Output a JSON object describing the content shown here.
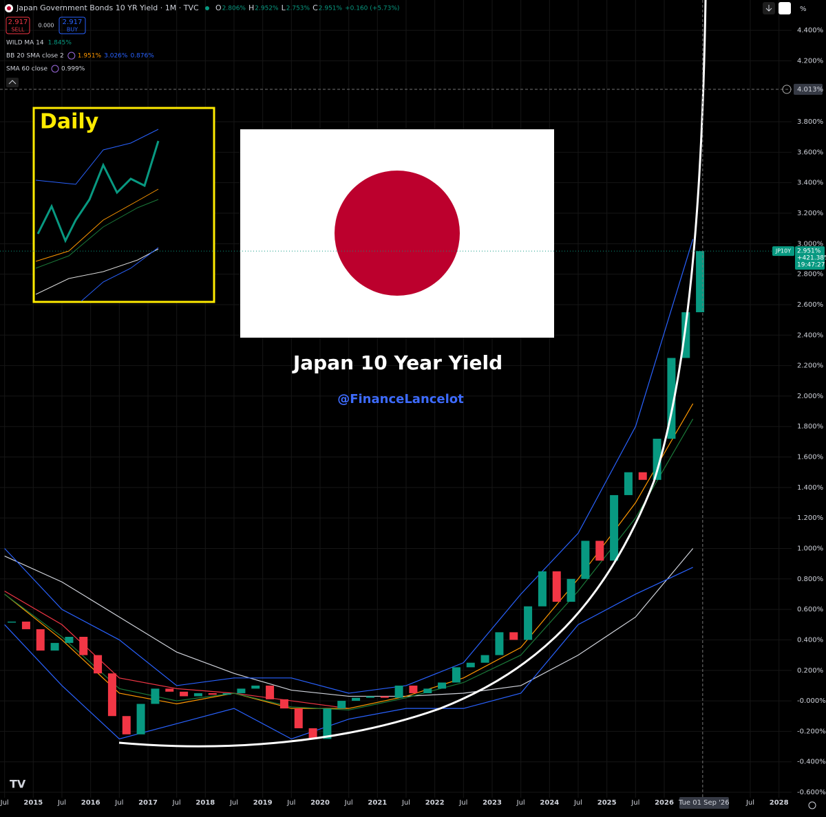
{
  "header": {
    "symbol_title": "Japan Government Bonds 10 YR Yield · 1M · TVC",
    "ohlc": [
      {
        "key": "O",
        "value": "2.806%"
      },
      {
        "key": "H",
        "value": "2.952%"
      },
      {
        "key": "L",
        "value": "2.753%"
      },
      {
        "key": "C",
        "value": "2.951%"
      }
    ],
    "change": "+0.160 (+5.73%)",
    "sell": {
      "price": "2.917",
      "label": "SELL"
    },
    "spread": "0.000",
    "buy": {
      "price": "2.917",
      "label": "BUY"
    },
    "indicators": [
      {
        "name": "WILD MA 14",
        "labels": [
          {
            "text": "1.845%",
            "color": "#089981"
          }
        ]
      },
      {
        "name": "BB 20 SMA close 2",
        "labels": [
          {
            "text": "1.951%",
            "color": "#ff9800"
          },
          {
            "text": "3.026%",
            "color": "#2962ff"
          },
          {
            "text": "0.876%",
            "color": "#2962ff"
          }
        ]
      },
      {
        "name": "SMA 60 close",
        "labels": [
          {
            "text": "0.999%",
            "color": "#d1d4dc"
          }
        ]
      }
    ],
    "percent_button": "%"
  },
  "overlay": {
    "inset_label": "Daily",
    "title": "Japan 10 Year Yield",
    "handle": "@FinanceLancelot"
  },
  "chart_data": {
    "type": "candlestick",
    "x": [
      2014.5,
      2014.75,
      2015,
      2015.25,
      2015.5,
      2015.75,
      2016,
      2016.25,
      2016.5,
      2016.75,
      2017,
      2017.25,
      2017.5,
      2017.75,
      2018,
      2018.25,
      2018.5,
      2018.75,
      2019,
      2019.25,
      2019.5,
      2019.75,
      2020,
      2020.25,
      2020.5,
      2020.75,
      2021,
      2021.25,
      2021.5,
      2021.75,
      2022,
      2022.25,
      2022.5,
      2022.75,
      2023,
      2023.25,
      2023.5,
      2023.75,
      2024,
      2024.25,
      2024.5,
      2024.75,
      2025,
      2025.25,
      2025.5,
      2025.75,
      2026,
      2026.25,
      2026.5
    ],
    "values": [
      0.52,
      0.47,
      0.33,
      0.38,
      0.42,
      0.3,
      0.18,
      -0.1,
      -0.22,
      -0.02,
      0.08,
      0.06,
      0.03,
      0.05,
      0.04,
      0.05,
      0.08,
      0.1,
      0.01,
      -0.05,
      -0.18,
      -0.25,
      -0.05,
      0.0,
      0.02,
      0.03,
      0.02,
      0.1,
      0.05,
      0.08,
      0.12,
      0.22,
      0.25,
      0.3,
      0.45,
      0.4,
      0.62,
      0.85,
      0.65,
      0.8,
      1.05,
      0.92,
      1.35,
      1.5,
      1.45,
      1.72,
      2.25,
      2.55,
      2.951
    ],
    "up_color": "#089981",
    "down_color": "#f23645",
    "series": [
      {
        "color": "#d1d4dc",
        "x": [
          2014.5,
          2015.5,
          2016.5,
          2017.5,
          2018.5,
          2019.5,
          2020.5,
          2021.5,
          2022.5,
          2023.5,
          2024.5,
          2025.5,
          2026.5
        ],
        "values": [
          0.95,
          0.78,
          0.55,
          0.32,
          0.18,
          0.07,
          0.03,
          0.03,
          0.05,
          0.1,
          0.3,
          0.55,
          1.0
        ]
      },
      {
        "color": "#f23645",
        "x": [
          2014.5,
          2015.5,
          2016.5,
          2017.5,
          2018.5,
          2019.5,
          2020.5,
          2021.5,
          2022.5,
          2023.5,
          2024.5,
          2025.5,
          2026.5
        ],
        "values": [
          0.72,
          0.5,
          0.15,
          0.08,
          0.05,
          0.0,
          -0.05,
          null,
          null,
          null,
          null,
          null,
          null
        ]
      },
      {
        "color": "#ff9800",
        "x": [
          2014.5,
          2015.5,
          2016.5,
          2017.5,
          2018.5,
          2019.5,
          2020.5,
          2021.5,
          2022.5,
          2023.5,
          2024.5,
          2025.5,
          2026.5
        ],
        "values": [
          0.7,
          0.4,
          0.05,
          -0.02,
          0.05,
          -0.05,
          -0.05,
          0.03,
          0.15,
          0.35,
          0.8,
          1.3,
          1.95
        ]
      },
      {
        "color": "#1b7a3a",
        "x": [
          2014.5,
          2015.5,
          2016.5,
          2017.5,
          2018.5,
          2019.5,
          2020.5,
          2021.5,
          2022.5,
          2023.5,
          2024.5,
          2025.5,
          2026.5
        ],
        "values": [
          0.7,
          0.42,
          0.08,
          0.0,
          0.05,
          -0.04,
          -0.06,
          0.02,
          0.12,
          0.3,
          0.72,
          1.2,
          1.85
        ]
      },
      {
        "color": "#2962ff",
        "x": [
          2014.5,
          2015.5,
          2016.5,
          2017.5,
          2018.5,
          2019.5,
          2020.5,
          2021.5,
          2022.5,
          2023.5,
          2024.5,
          2025.5,
          2026.5
        ],
        "values": [
          1.0,
          0.6,
          0.4,
          0.1,
          0.15,
          0.15,
          0.05,
          0.1,
          0.25,
          0.7,
          1.1,
          1.8,
          3.03
        ]
      },
      {
        "color": "#2962ff",
        "x": [
          2014.5,
          2015.5,
          2016.5,
          2017.5,
          2018.5,
          2019.5,
          2020.5,
          2021.5,
          2022.5,
          2023.5,
          2024.5,
          2025.5,
          2026.5
        ],
        "values": [
          0.5,
          0.1,
          -0.25,
          -0.15,
          -0.05,
          -0.25,
          -0.12,
          -0.05,
          -0.05,
          0.05,
          0.5,
          0.7,
          0.876
        ]
      }
    ],
    "xlim": [
      2014.42,
      2028.22
    ],
    "ylim": [
      -0.636,
      4.599
    ],
    "grid": true,
    "xticks": [
      {
        "value": 2014.5,
        "label": "Jul"
      },
      2015,
      {
        "value": 2015.5,
        "label": "Jul"
      },
      2016,
      {
        "value": 2016.5,
        "label": "Jul"
      },
      2017,
      {
        "value": 2017.5,
        "label": "Jul"
      },
      2018,
      {
        "value": 2018.5,
        "label": "Jul"
      },
      2019,
      {
        "value": 2019.5,
        "label": "Jul"
      },
      2020,
      {
        "value": 2020.5,
        "label": "Jul"
      },
      2021,
      {
        "value": 2021.5,
        "label": "Jul"
      },
      2022,
      {
        "value": 2022.5,
        "label": "Jul"
      },
      2023,
      {
        "value": 2023.5,
        "label": "Jul"
      },
      2024,
      {
        "value": 2024.5,
        "label": "Jul"
      },
      2025,
      {
        "value": 2025.5,
        "label": "Jul"
      },
      2026,
      {
        "value": 2027.5,
        "label": "Jul"
      },
      2028
    ],
    "yticks": [
      {
        "value": 4.4,
        "label": "4.400%"
      },
      {
        "value": 4.2,
        "label": "4.200%"
      },
      {
        "value": 3.8,
        "label": "3.800%"
      },
      {
        "value": 3.6,
        "label": "3.600%"
      },
      {
        "value": 3.4,
        "label": "3.400%"
      },
      {
        "value": 3.2,
        "label": "3.200%"
      },
      {
        "value": 3.0,
        "label": "3.000%"
      },
      {
        "value": 2.8,
        "label": "2.800%"
      },
      {
        "value": 2.6,
        "label": "2.600%"
      },
      {
        "value": 2.4,
        "label": "2.400%"
      },
      {
        "value": 2.2,
        "label": "2.200%"
      },
      {
        "value": 2.0,
        "label": "2.000%"
      },
      {
        "value": 1.8,
        "label": "1.800%"
      },
      {
        "value": 1.6,
        "label": "1.600%"
      },
      {
        "value": 1.4,
        "label": "1.400%"
      },
      {
        "value": 1.2,
        "label": "1.200%"
      },
      {
        "value": 1.0,
        "label": "1.000%"
      },
      {
        "value": 0.8,
        "label": "0.800%"
      },
      {
        "value": 0.6,
        "label": "0.600%"
      },
      {
        "value": 0.4,
        "label": "0.400%"
      },
      {
        "value": 0.2,
        "label": "0.200%"
      },
      {
        "value": 0,
        "label": "-0.000%"
      },
      {
        "value": -0.2,
        "label": "-0.200%"
      },
      {
        "value": -0.4,
        "label": "-0.400%"
      },
      {
        "value": -0.6,
        "label": "-0.600%"
      }
    ],
    "symbol_badge": "JP10Y",
    "last_price": {
      "value": 2.951,
      "label": "2.951%"
    },
    "last_change": "+421.38%",
    "countdown": "19:47:27",
    "crosshair_y": {
      "value": 4.013,
      "label": "4.013%"
    },
    "crosshair_x": {
      "value": 2026.67,
      "label": "Tue 01 Sep '26"
    }
  }
}
